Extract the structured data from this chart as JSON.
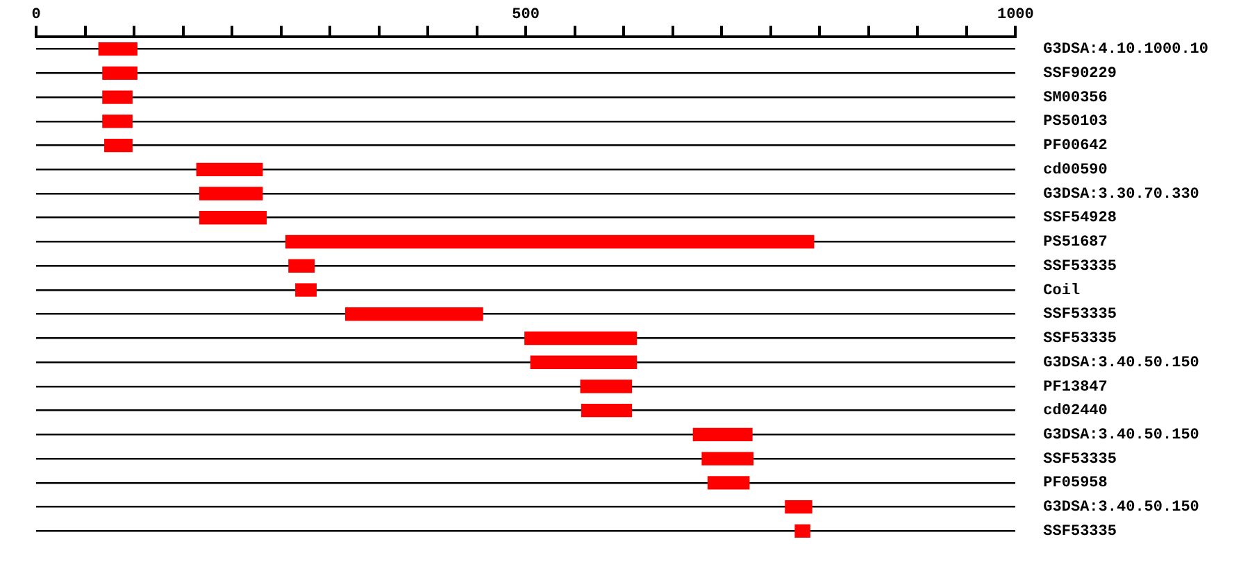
{
  "chart_data": {
    "type": "bar",
    "orientation": "horizontal",
    "categories": [
      "G3DSA:4.10.1000.10",
      "SSF90229",
      "SM00356",
      "PS50103",
      "PF00642",
      "cd00590",
      "G3DSA:3.30.70.330",
      "SSF54928",
      "PS51687",
      "SSF53335",
      "Coil",
      "SSF53335",
      "SSF53335",
      "G3DSA:3.40.50.150",
      "PF13847",
      "cd02440",
      "G3DSA:3.40.50.150",
      "SSF53335",
      "PF05958",
      "G3DSA:3.40.50.150",
      "SSF53335"
    ],
    "base": [
      64,
      68,
      68,
      68,
      70,
      164,
      167,
      167,
      255,
      258,
      265,
      316,
      499,
      505,
      556,
      557,
      671,
      680,
      686,
      765,
      775
    ],
    "values": [
      39,
      35,
      30,
      30,
      28,
      67,
      64,
      68,
      539,
      26,
      21,
      140,
      114,
      108,
      52,
      51,
      60,
      52,
      42,
      27,
      15
    ],
    "color": "#ff0000",
    "xlim": [
      0,
      1000
    ],
    "xticks": [
      0,
      {
        "value": 50,
        "label": null
      },
      {
        "value": 100,
        "label": null
      },
      {
        "value": 150,
        "label": null
      },
      {
        "value": 200,
        "label": null
      },
      {
        "value": 250,
        "label": null
      },
      {
        "value": 300,
        "label": null
      },
      {
        "value": 350,
        "label": null
      },
      {
        "value": 400,
        "label": null
      },
      {
        "value": 450,
        "label": null
      },
      500,
      {
        "value": 550,
        "label": null
      },
      {
        "value": 600,
        "label": null
      },
      {
        "value": 650,
        "label": null
      },
      {
        "value": 700,
        "label": null
      },
      {
        "value": 750,
        "label": null
      },
      {
        "value": 800,
        "label": null
      },
      {
        "value": 850,
        "label": null
      },
      {
        "value": 900,
        "label": null
      },
      {
        "value": 950,
        "label": null
      },
      1000
    ],
    "grid": "y",
    "legend": false
  }
}
